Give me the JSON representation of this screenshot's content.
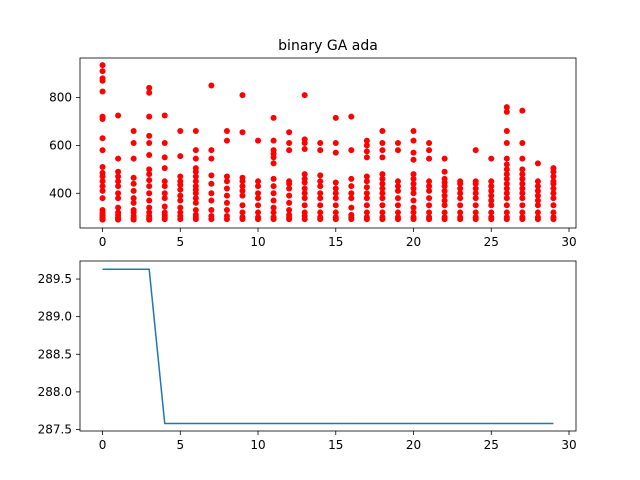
{
  "chart_data": [
    {
      "type": "scatter",
      "title": "binary GA ada",
      "xlabel": "",
      "ylabel": "",
      "xlim": [
        -1.45,
        30.45
      ],
      "ylim": [
        255,
        965
      ],
      "xticks": [
        0,
        5,
        10,
        15,
        20,
        25,
        30
      ],
      "yticks": [
        400,
        600,
        800
      ],
      "color": "#ff0000",
      "marker": "circle",
      "points_per_generation": [
        [
          935,
          910,
          880,
          870,
          825,
          720,
          710,
          630,
          580,
          510,
          485,
          470,
          450,
          430,
          410,
          380,
          330,
          320,
          312,
          305,
          300,
          295,
          292,
          290
        ],
        [
          725,
          545,
          490,
          470,
          450,
          430,
          400,
          380,
          340,
          320,
          310,
          300,
          295,
          290
        ],
        [
          660,
          610,
          545,
          465,
          440,
          410,
          380,
          360,
          330,
          320,
          305,
          295,
          290
        ],
        [
          840,
          820,
          720,
          640,
          610,
          560,
          500,
          480,
          455,
          430,
          400,
          370,
          340,
          320,
          305,
          295,
          290
        ],
        [
          725,
          610,
          550,
          505,
          450,
          430,
          400,
          380,
          345,
          320,
          310,
          300,
          292
        ],
        [
          660,
          555,
          470,
          450,
          435,
          415,
          390,
          370,
          340,
          320,
          305,
          292
        ],
        [
          660,
          580,
          545,
          505,
          490,
          470,
          450,
          430,
          415,
          400,
          380,
          360,
          330,
          310,
          300,
          292
        ],
        [
          850,
          580,
          545,
          475,
          440,
          400,
          370,
          330,
          305,
          292
        ],
        [
          660,
          620,
          470,
          450,
          420,
          390,
          360,
          330,
          305,
          292
        ],
        [
          810,
          655,
          465,
          450,
          430,
          410,
          390,
          350,
          320,
          300,
          292
        ],
        [
          620,
          450,
          430,
          400,
          380,
          350,
          320,
          300,
          292
        ],
        [
          715,
          620,
          580,
          565,
          550,
          525,
          460,
          430,
          400,
          370,
          340,
          320,
          300,
          292
        ],
        [
          655,
          610,
          580,
          450,
          440,
          420,
          390,
          360,
          330,
          310,
          300,
          292
        ],
        [
          810,
          625,
          610,
          585,
          480,
          460,
          445,
          420,
          400,
          380,
          350,
          320,
          305,
          292
        ],
        [
          610,
          580,
          475,
          450,
          430,
          400,
          380,
          350,
          320,
          300,
          292
        ],
        [
          715,
          610,
          570,
          445,
          420,
          400,
          380,
          350,
          320,
          300,
          292
        ],
        [
          720,
          580,
          460,
          430,
          400,
          380,
          340,
          310,
          300,
          292
        ],
        [
          620,
          600,
          575,
          550,
          470,
          450,
          425,
          400,
          380,
          350,
          320,
          300,
          292
        ],
        [
          660,
          610,
          580,
          550,
          480,
          460,
          440,
          420,
          400,
          380,
          350,
          320,
          300,
          292
        ],
        [
          610,
          580,
          450,
          430,
          410,
          380,
          350,
          320,
          300,
          292
        ],
        [
          660,
          620,
          570,
          540,
          480,
          460,
          440,
          420,
          400,
          370,
          340,
          320,
          300,
          292
        ],
        [
          610,
          580,
          545,
          450,
          430,
          410,
          380,
          350,
          320,
          300,
          292
        ],
        [
          545,
          490,
          460,
          445,
          430,
          410,
          390,
          370,
          350,
          320,
          300,
          292
        ],
        [
          450,
          440,
          420,
          400,
          380,
          350,
          320,
          300,
          292
        ],
        [
          580,
          450,
          440,
          420,
          400,
          380,
          350,
          320,
          300,
          292
        ],
        [
          545,
          450,
          430,
          410,
          390,
          370,
          350,
          320,
          300,
          292
        ],
        [
          760,
          740,
          660,
          610,
          545,
          520,
          500,
          480,
          460,
          440,
          420,
          400,
          380,
          350,
          320,
          300,
          292
        ],
        [
          745,
          610,
          545,
          500,
          480,
          460,
          440,
          420,
          400,
          380,
          350,
          320,
          300,
          292
        ],
        [
          525,
          450,
          430,
          410,
          390,
          370,
          350,
          320,
          300,
          292
        ],
        [
          505,
          490,
          470,
          450,
          440,
          420,
          400,
          380,
          350,
          320,
          300,
          292
        ]
      ]
    },
    {
      "type": "line",
      "title": "",
      "xlabel": "",
      "ylabel": "",
      "xlim": [
        -1.45,
        30.45
      ],
      "ylim": [
        287.48,
        289.74
      ],
      "xticks": [
        0,
        5,
        10,
        15,
        20,
        25,
        30
      ],
      "yticks": [
        287.5,
        288.0,
        288.5,
        289.0,
        289.5
      ],
      "ytick_labels": [
        "287.5",
        "288.0",
        "288.5",
        "289.0",
        "289.5"
      ],
      "color": "#1f77b4",
      "x": [
        0,
        1,
        2,
        3,
        4,
        5,
        6,
        7,
        8,
        9,
        10,
        11,
        12,
        13,
        14,
        15,
        16,
        17,
        18,
        19,
        20,
        21,
        22,
        23,
        24,
        25,
        26,
        27,
        28,
        29
      ],
      "y": [
        289.63,
        289.63,
        289.63,
        289.63,
        287.58,
        287.58,
        287.58,
        287.58,
        287.58,
        287.58,
        287.58,
        287.58,
        287.58,
        287.58,
        287.58,
        287.58,
        287.58,
        287.58,
        287.58,
        287.58,
        287.58,
        287.58,
        287.58,
        287.58,
        287.58,
        287.58,
        287.58,
        287.58,
        287.58,
        287.58
      ]
    }
  ]
}
